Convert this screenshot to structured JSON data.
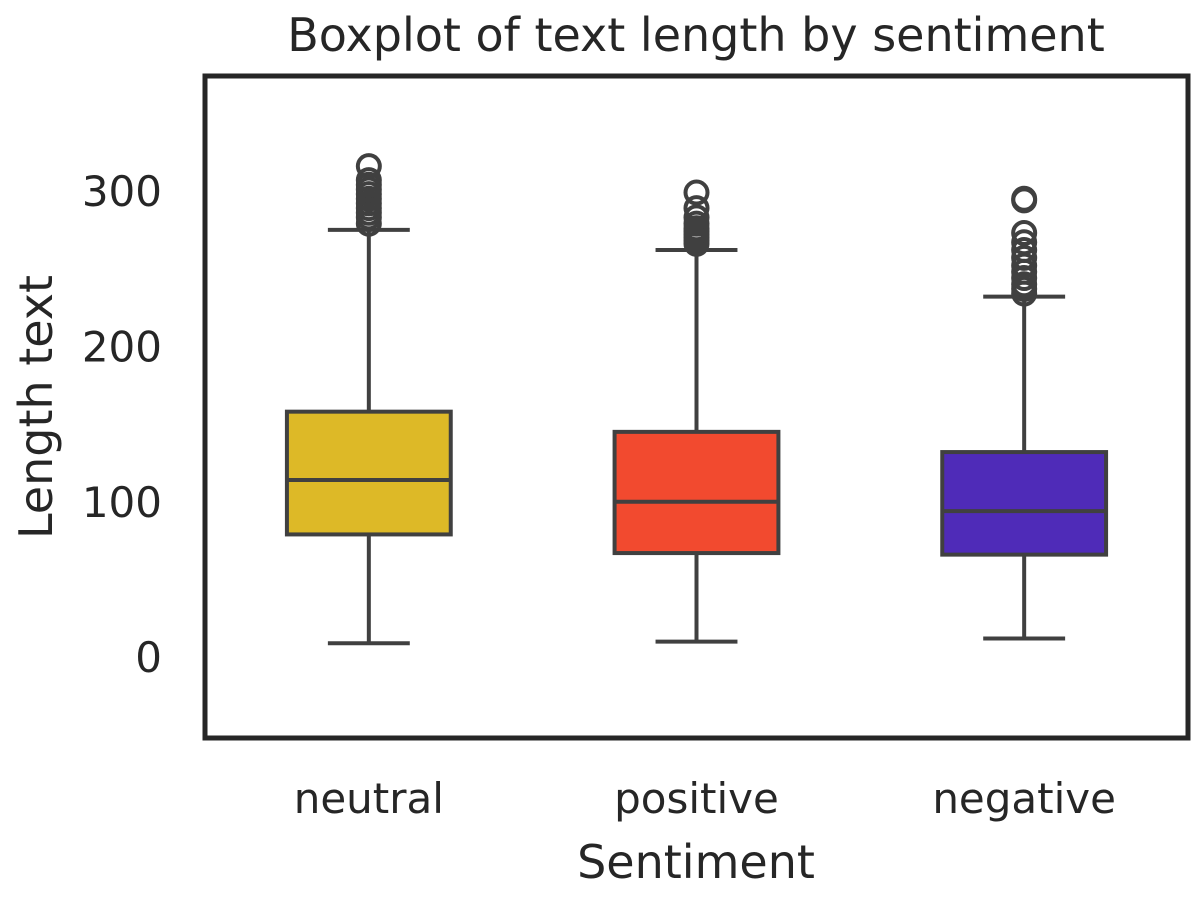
{
  "chart_data": {
    "type": "box",
    "title": "Boxplot of text length by sentiment",
    "xlabel": "Sentiment",
    "ylabel": "Length text",
    "ylim": [
      -52,
      374
    ],
    "yticks": [
      0,
      100,
      200,
      300
    ],
    "grid": false,
    "categories": [
      "neutral",
      "positive",
      "negative"
    ],
    "boxes": [
      {
        "category": "neutral",
        "color": "#DDB927",
        "whisker_low": 9,
        "q1": 79,
        "median": 114,
        "q3": 158,
        "whisker_high": 275,
        "outliers": [
          279,
          283,
          286,
          289,
          292,
          295,
          298,
          301,
          304,
          307,
          316
        ]
      },
      {
        "category": "positive",
        "color": "#F24A2F",
        "whisker_low": 10,
        "q1": 67,
        "median": 100,
        "q3": 145,
        "whisker_high": 262,
        "outliers": [
          266,
          268,
          270,
          272,
          274,
          276,
          279,
          283,
          289,
          299
        ]
      },
      {
        "category": "negative",
        "color": "#4F2BB8",
        "whisker_low": 12,
        "q1": 66,
        "median": 94,
        "q3": 132,
        "whisker_high": 232,
        "outliers": [
          234,
          237,
          240,
          244,
          248,
          252,
          257,
          262,
          267,
          273,
          294,
          295
        ]
      }
    ]
  }
}
